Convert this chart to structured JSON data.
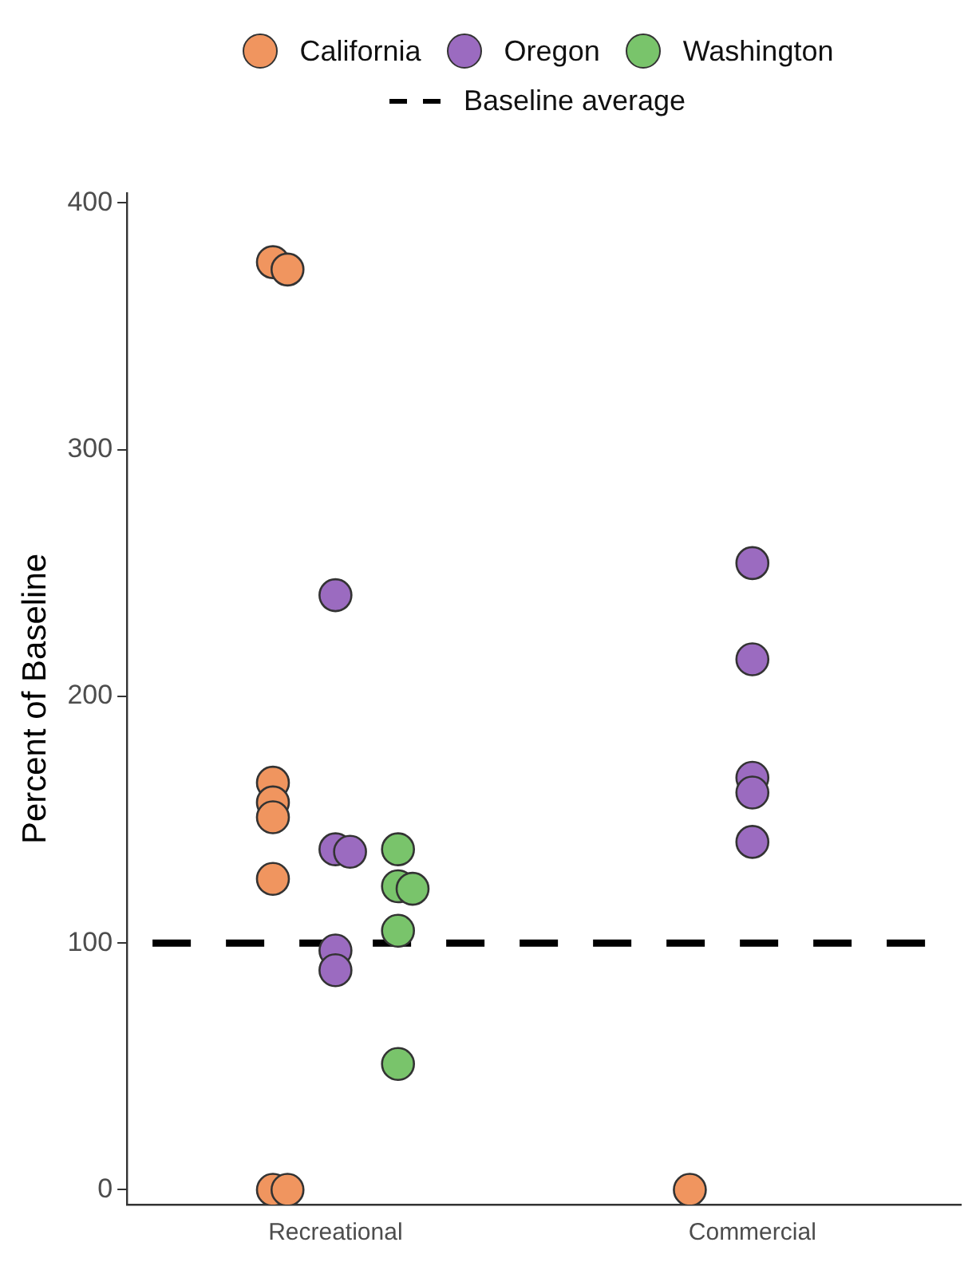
{
  "chart_data": {
    "type": "scatter",
    "ylabel": "Percent of Baseline",
    "categories": [
      "Recreational",
      "Commercial"
    ],
    "series": [
      {
        "name": "California",
        "color": "#f0955f",
        "x": [
          "Recreational",
          "Recreational",
          "Recreational",
          "Recreational",
          "Recreational",
          "Recreational",
          "Recreational",
          "Recreational",
          "Commercial"
        ],
        "values": [
          376,
          373,
          165,
          157,
          151,
          126,
          0,
          0,
          0
        ]
      },
      {
        "name": "Oregon",
        "color": "#9b6bc0",
        "x": [
          "Recreational",
          "Recreational",
          "Recreational",
          "Recreational",
          "Recreational",
          "Commercial",
          "Commercial",
          "Commercial",
          "Commercial",
          "Commercial"
        ],
        "values": [
          241,
          138,
          137,
          97,
          89,
          254,
          215,
          167,
          161,
          141
        ]
      },
      {
        "name": "Washington",
        "color": "#79c46b",
        "x": [
          "Recreational",
          "Recreational",
          "Recreational",
          "Recreational",
          "Recreational"
        ],
        "values": [
          138,
          123,
          122,
          105,
          51
        ]
      }
    ],
    "ref_lines": [
      {
        "axis": "y",
        "value": 100,
        "label": "Baseline average",
        "color": "#000000",
        "line_style": "dashed"
      }
    ],
    "ylim": [
      -6,
      404
    ],
    "yticks": [
      0,
      100,
      200,
      300,
      400
    ],
    "marker": "circle",
    "grid": false,
    "legend": "top"
  }
}
